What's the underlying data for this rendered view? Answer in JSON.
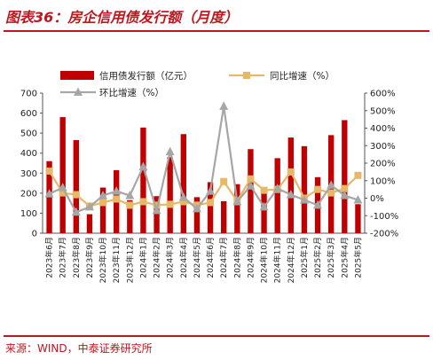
{
  "figure": {
    "title": "图表36：房企信用债发行额（月度）",
    "source": "来源：WIND，中泰证券研究所"
  },
  "colors": {
    "accent": "#c0161f",
    "bar": "#c00000",
    "yoy": "#e6b86a",
    "mom": "#a6a6a6"
  },
  "chart_data": {
    "type": "bar",
    "categories": [
      "2023年6月",
      "2023年7月",
      "2023年8月",
      "2023年9月",
      "2023年10月",
      "2023年11月",
      "2023年12月",
      "2024年1月",
      "2024年2月",
      "2024年3月",
      "2024年4月",
      "2024年5月",
      "2024年6月",
      "2024年7月",
      "2024年8月",
      "2024年9月",
      "2024年10月",
      "2024年11月",
      "2024年12月",
      "2025年1月",
      "2025年2月",
      "2025年3月",
      "2025年4月",
      "2025年5月"
    ],
    "series": [
      {
        "name": "信用债发行额（亿元）",
        "type": "bar",
        "axis": "left",
        "color": "#c00000",
        "values": [
          360,
          580,
          465,
          95,
          228,
          315,
          165,
          528,
          185,
          380,
          495,
          180,
          255,
          160,
          245,
          420,
          198,
          375,
          478,
          435,
          280,
          490,
          565,
          145
        ]
      },
      {
        "name": "同比增速（%）",
        "type": "line",
        "axis": "right",
        "marker": "square",
        "color": "#e6b86a",
        "values": [
          155,
          30,
          20,
          -45,
          -25,
          -5,
          -40,
          -20,
          -40,
          -35,
          -20,
          -40,
          -25,
          95,
          -15,
          110,
          45,
          50,
          150,
          0,
          50,
          30,
          55,
          130
        ]
      },
      {
        "name": "环比增速（%）",
        "type": "line",
        "axis": "right",
        "marker": "triangle",
        "color": "#a6a6a6",
        "values": [
          25,
          60,
          -80,
          -50,
          15,
          40,
          15,
          180,
          -70,
          265,
          5,
          -60,
          40,
          525,
          -20,
          70,
          -50,
          55,
          20,
          -10,
          -40,
          75,
          15,
          -10
        ]
      }
    ],
    "ylim_left": [
      0,
      700
    ],
    "yticks_left": [
      0,
      100,
      200,
      300,
      400,
      500,
      600,
      700
    ],
    "ylim_right": [
      -200,
      600
    ],
    "yticks_right": [
      -200,
      -100,
      0,
      100,
      200,
      300,
      400,
      500,
      600
    ],
    "yticks_right_labels": [
      "-200%",
      "-100%",
      "0%",
      "100%",
      "200%",
      "300%",
      "400%",
      "500%",
      "600%"
    ],
    "grid": false,
    "legend": "top"
  }
}
